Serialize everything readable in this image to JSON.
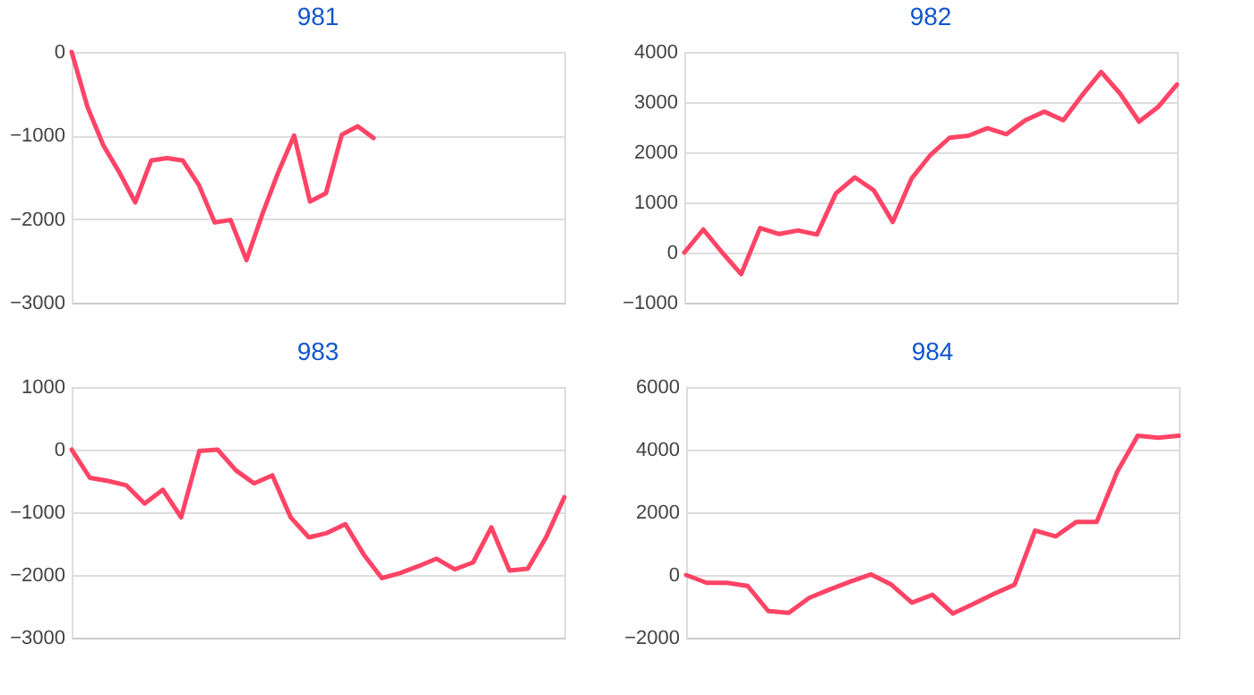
{
  "chart_data": [
    {
      "type": "line",
      "title": "981",
      "categories": [
        null,
        null,
        null,
        null,
        null,
        null,
        null,
        null,
        null,
        null,
        null,
        null,
        null,
        null,
        null,
        null,
        null,
        null,
        null,
        null,
        null,
        null,
        null,
        null,
        null,
        null,
        null,
        null,
        null,
        null,
        null,
        null
      ],
      "series": [
        {
          "color": "#ff4466",
          "values": [
            0,
            -660,
            -1120,
            -1440,
            -1800,
            -1300,
            -1270,
            -1300,
            -1590,
            -2040,
            -2010,
            -2490,
            -1940,
            -1440,
            -1000,
            -1790,
            -1690,
            -990,
            -890,
            -1030,
            null,
            null,
            null,
            null,
            null,
            null,
            null,
            null,
            null,
            null,
            null,
            null
          ]
        }
      ],
      "ylim": [
        -3000,
        0
      ],
      "yticks": [
        -3000,
        -2000,
        -1000,
        0
      ],
      "grid": "y",
      "tick_labels": "y",
      "marker": "none",
      "line_style": "solid"
    },
    {
      "type": "line",
      "title": "982",
      "categories": [
        null,
        null,
        null,
        null,
        null,
        null,
        null,
        null,
        null,
        null,
        null,
        null,
        null,
        null,
        null,
        null,
        null,
        null,
        null,
        null,
        null,
        null,
        null,
        null,
        null,
        null,
        null
      ],
      "series": [
        {
          "color": "#ff4466",
          "values": [
            0,
            460,
            0,
            -430,
            490,
            370,
            440,
            360,
            1180,
            1500,
            1240,
            610,
            1480,
            1950,
            2290,
            2330,
            2480,
            2360,
            2640,
            2810,
            2640,
            3140,
            3600,
            3170,
            2610,
            2900,
            3350
          ]
        }
      ],
      "ylim": [
        -1000,
        4000
      ],
      "yticks": [
        -1000,
        0,
        1000,
        2000,
        3000,
        4000
      ],
      "grid": "y",
      "tick_labels": "y",
      "marker": "none",
      "line_style": "solid"
    },
    {
      "type": "line",
      "title": "983",
      "categories": [
        null,
        null,
        null,
        null,
        null,
        null,
        null,
        null,
        null,
        null,
        null,
        null,
        null,
        null,
        null,
        null,
        null,
        null,
        null,
        null,
        null,
        null,
        null,
        null,
        null,
        null,
        null,
        null
      ],
      "series": [
        {
          "color": "#ff4466",
          "values": [
            0,
            -450,
            -500,
            -570,
            -860,
            -640,
            -1080,
            -20,
            0,
            -330,
            -540,
            -410,
            -1080,
            -1400,
            -1330,
            -1190,
            -1670,
            -2050,
            -1970,
            -1860,
            -1740,
            -1910,
            -1800,
            -1240,
            -1930,
            -1900,
            -1400,
            -760
          ]
        }
      ],
      "ylim": [
        -3000,
        1000
      ],
      "yticks": [
        -3000,
        -2000,
        -1000,
        0,
        1000
      ],
      "grid": "y",
      "tick_labels": "y",
      "marker": "none",
      "line_style": "solid"
    },
    {
      "type": "line",
      "title": "984",
      "categories": [
        null,
        null,
        null,
        null,
        null,
        null,
        null,
        null,
        null,
        null,
        null,
        null,
        null,
        null,
        null,
        null,
        null,
        null,
        null,
        null,
        null,
        null,
        null,
        null,
        null
      ],
      "series": [
        {
          "color": "#ff4466",
          "values": [
            0,
            -250,
            -250,
            -350,
            -1150,
            -1210,
            -730,
            -460,
            -210,
            20,
            -310,
            -880,
            -630,
            -1230,
            -920,
            -600,
            -310,
            1420,
            1230,
            1690,
            1690,
            3290,
            4440,
            4380,
            4440
          ]
        }
      ],
      "ylim": [
        -2000,
        6000
      ],
      "yticks": [
        -2000,
        0,
        2000,
        4000,
        6000
      ],
      "grid": "y",
      "tick_labels": "y",
      "marker": "none",
      "line_style": "solid"
    }
  ]
}
